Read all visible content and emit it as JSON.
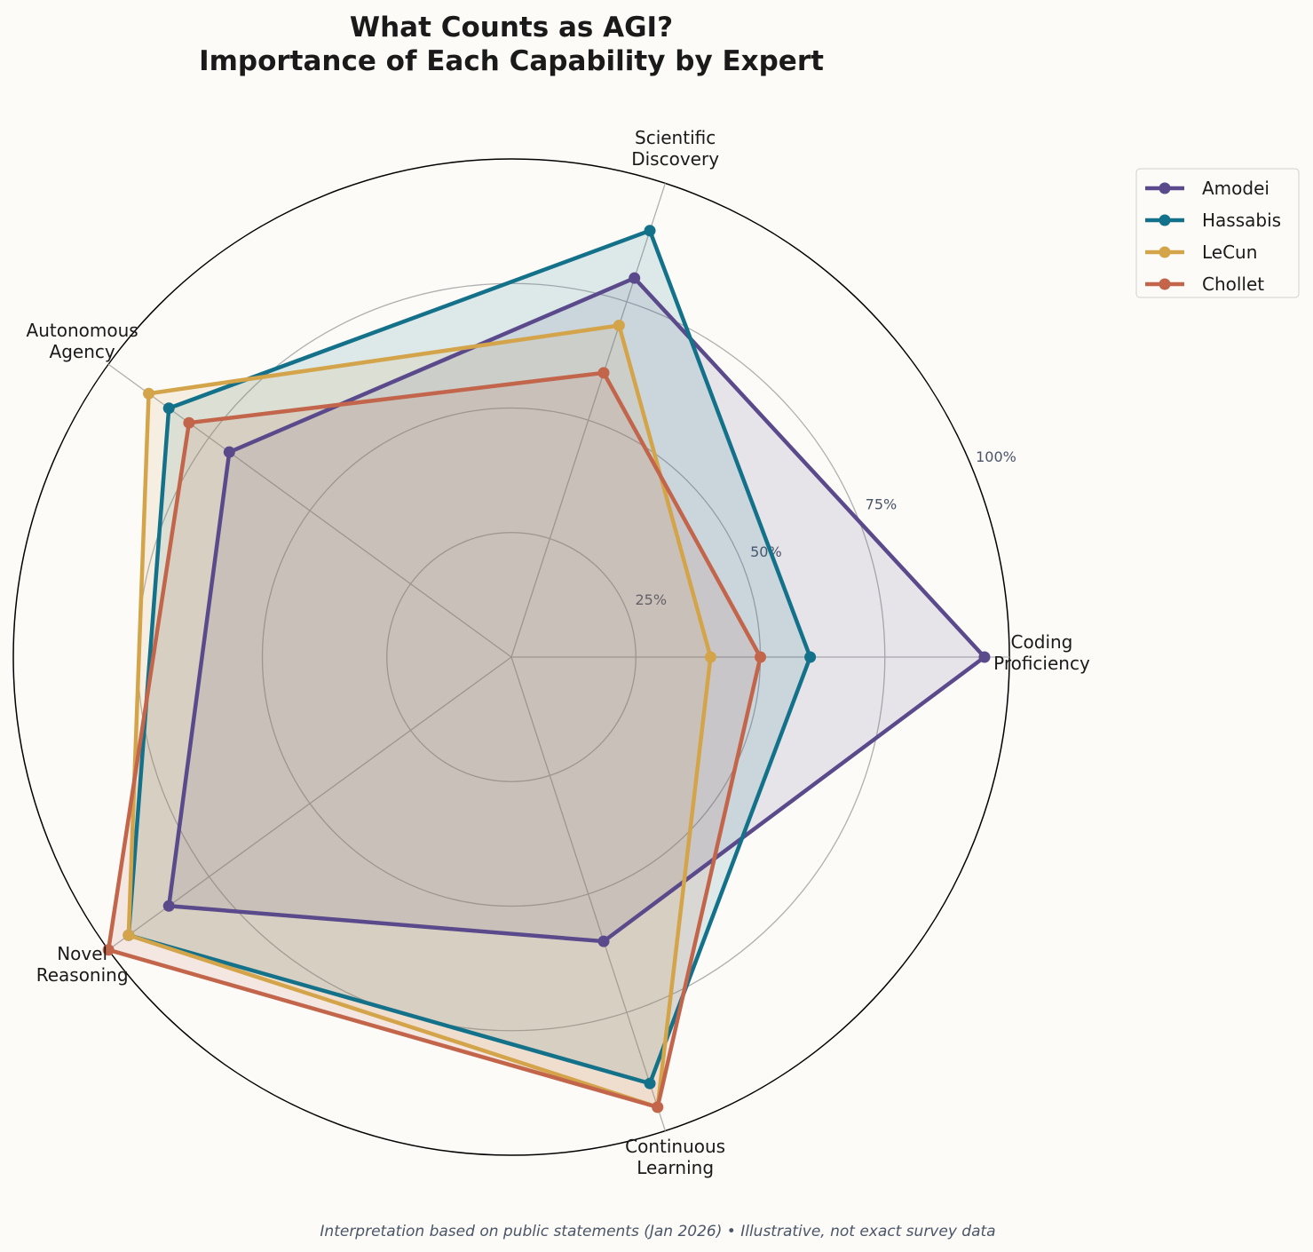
{
  "chart_data": {
    "type": "radar",
    "title": [
      "What Counts as AGI?",
      "Importance of Each Capability by Expert"
    ],
    "categories": [
      [
        "Coding",
        "Proficiency"
      ],
      [
        "Scientific",
        "Discovery"
      ],
      [
        "Autonomous",
        "Agency"
      ],
      [
        "Novel",
        "Reasoning"
      ],
      [
        "Continuous",
        "Learning"
      ]
    ],
    "radial_ticks": [
      0.25,
      0.5,
      0.75,
      1.0
    ],
    "radial_tick_labels": [
      "25%",
      "50%",
      "75%",
      "100%"
    ],
    "rlim": [
      0,
      1
    ],
    "grid": true,
    "legend_position": "top-right, outside",
    "series": [
      {
        "name": "Amodei",
        "color": "#5b4a8b",
        "values": [
          0.95,
          0.8,
          0.7,
          0.85,
          0.6
        ]
      },
      {
        "name": "Hassabis",
        "color": "#13718a",
        "values": [
          0.6,
          0.9,
          0.85,
          0.95,
          0.9
        ]
      },
      {
        "name": "LeCun",
        "color": "#d4a44a",
        "values": [
          0.4,
          0.7,
          0.9,
          0.95,
          0.95
        ]
      },
      {
        "name": "Chollet",
        "color": "#c2654a",
        "values": [
          0.5,
          0.6,
          0.8,
          1.0,
          0.95
        ]
      }
    ],
    "footnote": "Interpretation based on public statements (Jan 2026) • Illustrative, not exact survey data"
  }
}
